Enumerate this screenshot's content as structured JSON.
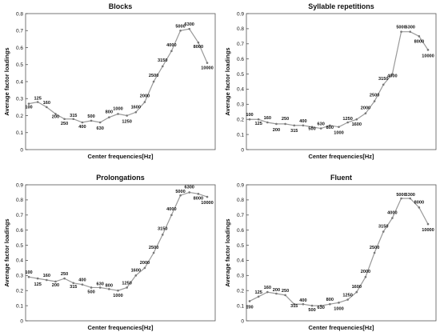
{
  "chart_data": [
    {
      "type": "line",
      "title": "Blocks",
      "xlabel": "Center frequencies[Hz]",
      "ylabel": "Average factor loadings",
      "ylim": [
        0,
        0.8
      ],
      "yticks": [
        "0",
        "0.1",
        "0.2",
        "0.3",
        "0.4",
        "0.5",
        "0.6",
        "0.7",
        "0.8"
      ],
      "grid": false,
      "x": [
        "100",
        "125",
        "160",
        "200",
        "250",
        "315",
        "400",
        "500",
        "630",
        "800",
        "1000",
        "1250",
        "1600",
        "2000",
        "2500",
        "3150",
        "4000",
        "5000",
        "6300",
        "8000",
        "10000"
      ],
      "values": [
        0.27,
        0.28,
        0.25,
        0.21,
        0.18,
        0.18,
        0.16,
        0.17,
        0.16,
        0.19,
        0.21,
        0.2,
        0.22,
        0.28,
        0.4,
        0.49,
        0.58,
        0.7,
        0.71,
        0.63,
        0.51
      ]
    },
    {
      "type": "line",
      "title": "Syllable repetitions",
      "xlabel": "Center frequencies[Hz]",
      "ylabel": "Average factor loadings",
      "ylim": [
        0,
        0.9
      ],
      "yticks": [
        "0",
        "0.1",
        "0.2",
        "0.3",
        "0.4",
        "0.5",
        "0.6",
        "0.7",
        "0.8",
        "0.9"
      ],
      "grid": false,
      "x": [
        "100",
        "125",
        "160",
        "200",
        "250",
        "315",
        "400",
        "500",
        "630",
        "800",
        "1000",
        "1250",
        "1600",
        "2000",
        "2500",
        "3150",
        "4000",
        "5000",
        "6300",
        "8000",
        "10000"
      ],
      "values": [
        0.2,
        0.2,
        0.18,
        0.17,
        0.17,
        0.16,
        0.16,
        0.15,
        0.14,
        0.16,
        0.15,
        0.18,
        0.2,
        0.24,
        0.32,
        0.43,
        0.5,
        0.78,
        0.78,
        0.75,
        0.66
      ]
    },
    {
      "type": "line",
      "title": "Prolongations",
      "xlabel": "Center frequencies[Hz]",
      "ylabel": "Average factor loadings",
      "ylim": [
        0,
        0.9
      ],
      "yticks": [
        "0",
        "0.1",
        "0.2",
        "0.3",
        "0.4",
        "0.5",
        "0.6",
        "0.7",
        "0.8",
        "0.9"
      ],
      "grid": false,
      "x": [
        "100",
        "125",
        "160",
        "200",
        "250",
        "315",
        "400",
        "500",
        "630",
        "800",
        "1000",
        "1250",
        "1600",
        "2000",
        "2500",
        "3150",
        "4000",
        "5000",
        "6300",
        "8000",
        "10000"
      ],
      "values": [
        0.29,
        0.28,
        0.27,
        0.26,
        0.28,
        0.25,
        0.24,
        0.22,
        0.22,
        0.21,
        0.2,
        0.22,
        0.3,
        0.35,
        0.45,
        0.57,
        0.7,
        0.83,
        0.85,
        0.84,
        0.82
      ]
    },
    {
      "type": "line",
      "title": "Fluent",
      "xlabel": "Center frequencies[Hz]",
      "ylabel": "Average factor loadings",
      "ylim": [
        0,
        0.9
      ],
      "yticks": [
        "0",
        "0.1",
        "0.2",
        "0.3",
        "0.4",
        "0.5",
        "0.6",
        "0.7",
        "0.8",
        "0.9"
      ],
      "grid": false,
      "x": [
        "100",
        "125",
        "160",
        "200",
        "250",
        "315",
        "400",
        "500",
        "630",
        "800",
        "1000",
        "1250",
        "1600",
        "2000",
        "2500",
        "3150",
        "4000",
        "5000",
        "6300",
        "8000",
        "10000"
      ],
      "values": [
        0.13,
        0.16,
        0.19,
        0.18,
        0.17,
        0.11,
        0.11,
        0.1,
        0.1,
        0.11,
        0.12,
        0.14,
        0.19,
        0.29,
        0.45,
        0.59,
        0.68,
        0.81,
        0.81,
        0.75,
        0.64
      ]
    }
  ],
  "style": {
    "line_color": "#999999",
    "marker_color": "#777777",
    "axis_color": "#555555",
    "text_color": "#111111"
  }
}
